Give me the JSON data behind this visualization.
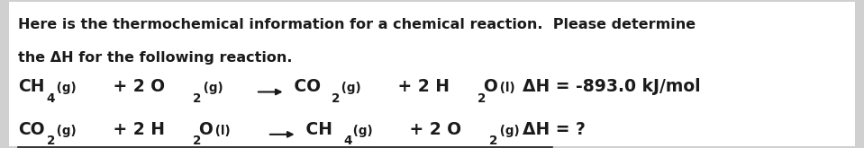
{
  "background_color": "#d0d0d0",
  "panel_color": "#ffffff",
  "text_color": "#1a1a1a",
  "header_line1": "Here is the thermochemical information for a chemical reaction.  Please determine",
  "header_line2": "the ΔH for the following reaction.",
  "rxn1_right_label": "ΔH = -893.0 kJ/mol",
  "rxn2_right_label": "ΔH = ?",
  "font_size_header": 11.5,
  "font_size_rxn": 13.5,
  "font_size_dh": 13.5
}
